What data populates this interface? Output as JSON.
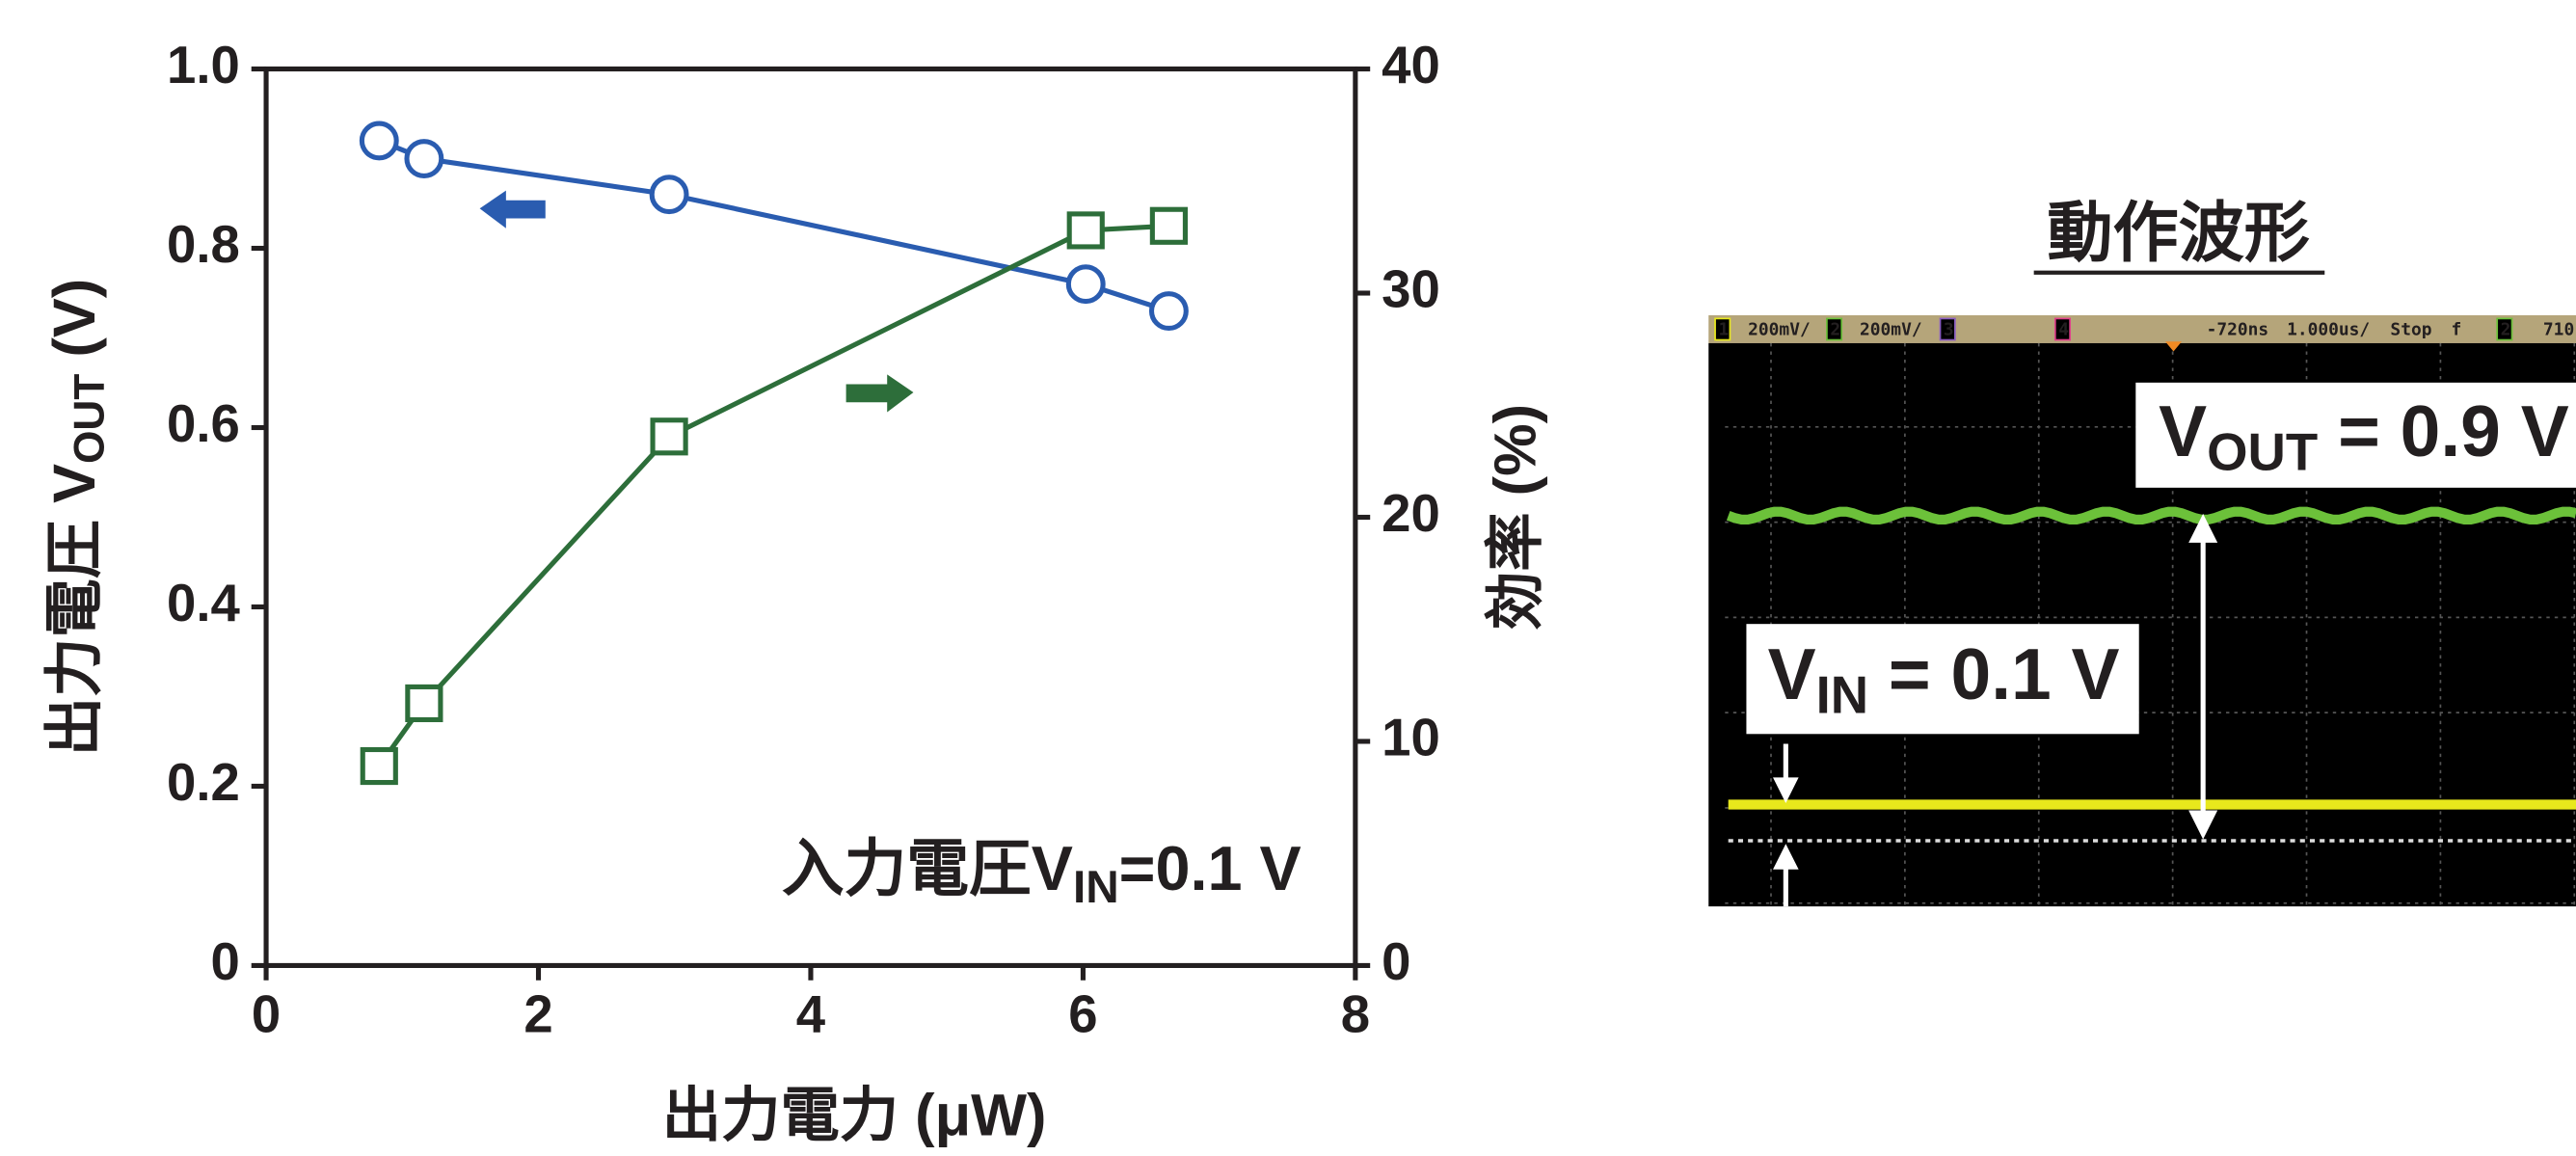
{
  "chart_data": {
    "type": "line",
    "xlabel": "出力電力 (μW)",
    "ylabel": {
      "text": "出力電圧 V",
      "sub": "OUT",
      "suffix": " (V)"
    },
    "y2label": "効率 (%)",
    "annotation": {
      "text": "入力電圧V",
      "sub": "IN",
      "suffix": "=0.1 V"
    },
    "x": [
      0.83,
      1.16,
      2.96,
      6.02,
      6.63
    ],
    "series": [
      {
        "color": "#2a5cb0",
        "marker": "circle",
        "axis": "y",
        "values": [
          0.92,
          0.9,
          0.86,
          0.76,
          0.73
        ]
      },
      {
        "color": "#2d6e3a",
        "marker": "square",
        "axis": "y2",
        "values": [
          8.9,
          11.7,
          23.6,
          32.8,
          33.0
        ]
      }
    ],
    "xlim": [
      0,
      8
    ],
    "xticks": [
      0,
      2,
      4,
      6,
      8
    ],
    "ylim": [
      0,
      1
    ],
    "yticks": [
      0,
      0.2,
      0.4,
      0.6,
      0.8,
      {
        "value": 1,
        "label": "1.0"
      }
    ],
    "y2lim": [
      0,
      40
    ],
    "y2ticks": [
      0,
      10,
      20,
      30,
      40
    ]
  },
  "scope": {
    "title": "動作波形",
    "status_bar": [
      "1",
      "200mV/",
      "2",
      "200mV/",
      "3",
      "4",
      "-720ns",
      "1.000us/",
      "Stop",
      "f",
      "2",
      "710"
    ],
    "vout_label": {
      "text": "V",
      "sub": "OUT",
      "suffix": " = 0.9 V"
    },
    "vin_label": {
      "text": "V",
      "sub": "IN",
      "suffix": " = 0.1 V"
    }
  }
}
